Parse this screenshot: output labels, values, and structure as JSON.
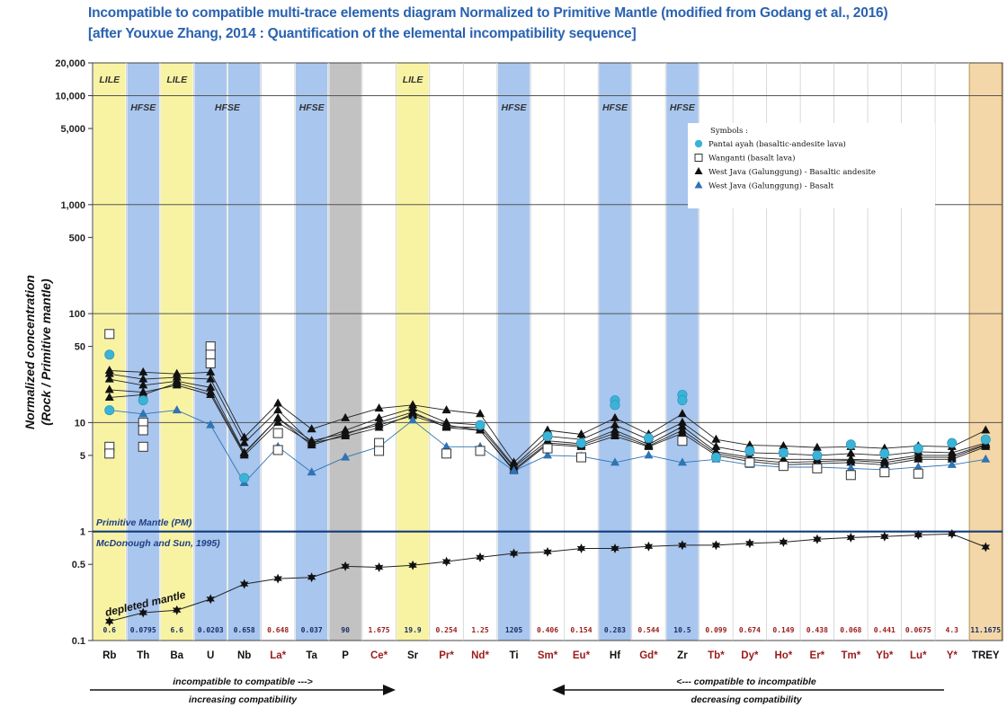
{
  "title_line1": "Incompatible to compatible multi-trace elements diagram Normalized to Primitive Mantle (modified from Godang et al., 2016)",
  "title_line2": "[after Youxue Zhang, 2014 : Quantification of the elemental incompatibility sequence]",
  "colors": {
    "title": "#2a62b0",
    "lile": "#f8f3a3",
    "hfse": "#a8c6ee",
    "p_band": "#c2c2c2",
    "trey": "#f4d7a8",
    "pm_line": "#123b7a",
    "ree_label": "#9b1b1b",
    "cyan": "#3bb3d6",
    "blue_tri": "#2f74b4"
  },
  "chart_data": {
    "type": "scatter",
    "y_scale": "log",
    "ylim": [
      0.1,
      20000
    ],
    "ylabel": "Normalized concentration\n(Rock / Primitive mantle)",
    "yticks": [
      0.1,
      0.5,
      1,
      5,
      10,
      50,
      100,
      500,
      1000,
      5000,
      10000,
      20000
    ],
    "ytick_labels": [
      "0.1",
      "0.5",
      "1",
      "5",
      "10",
      "50",
      "100",
      "500",
      "1,000",
      "5,000",
      "10,000",
      "20,000"
    ],
    "categories": [
      "Rb",
      "Th",
      "Ba",
      "U",
      "Nb",
      "La*",
      "Ta",
      "P",
      "Ce*",
      "Sr",
      "Pr*",
      "Nd*",
      "Ti",
      "Sm*",
      "Eu*",
      "Hf",
      "Gd*",
      "Zr",
      "Tb*",
      "Dy*",
      "Ho*",
      "Er*",
      "Tm*",
      "Yb*",
      "Lu*",
      "Y*",
      "TREY"
    ],
    "ree_flags": [
      false,
      false,
      false,
      false,
      false,
      true,
      false,
      false,
      true,
      false,
      true,
      true,
      false,
      true,
      true,
      false,
      true,
      false,
      true,
      true,
      true,
      true,
      true,
      true,
      true,
      true,
      false
    ],
    "band_types": [
      "lile",
      "hfse",
      "lile",
      "hfse",
      "hfse",
      "",
      "hfse",
      "p",
      "",
      "lile",
      "",
      "",
      "hfse",
      "",
      "",
      "hfse",
      "",
      "hfse",
      "",
      "",
      "",
      "",
      "",
      "",
      "",
      "",
      "trey"
    ],
    "band_labels": [
      {
        "index": 0,
        "text": "LILE",
        "row": "top"
      },
      {
        "index": 1,
        "text": "HFSE",
        "row": "second"
      },
      {
        "index": 2,
        "text": "LILE",
        "row": "top"
      },
      {
        "index": 3.5,
        "text": "HFSE",
        "row": "second"
      },
      {
        "index": 6,
        "text": "HFSE",
        "row": "second"
      },
      {
        "index": 9,
        "text": "LILE",
        "row": "top"
      },
      {
        "index": 12,
        "text": "HFSE",
        "row": "second"
      },
      {
        "index": 15,
        "text": "HFSE",
        "row": "second"
      },
      {
        "index": 17,
        "text": "HFSE",
        "row": "second"
      }
    ],
    "pm_values": [
      "0.6",
      "0.0795",
      "6.6",
      "0.0203",
      "0.658",
      "0.648",
      "0.037",
      "90",
      "1.675",
      "19.9",
      "0.254",
      "1.25",
      "1205",
      "0.406",
      "0.154",
      "0.283",
      "0.544",
      "10.5",
      "0.099",
      "0.674",
      "0.149",
      "0.438",
      "0.068",
      "0.441",
      "0.0675",
      "4.3",
      "11.1675"
    ],
    "primitive_mantle_value": 1,
    "annotations": {
      "pm_label": "Primitive Mantle (PM)",
      "pm_ref": "McDonough and Sun, 1995)",
      "depleted": "depleted mantle",
      "left_top": "incompatible to compatible --->",
      "left_bottom": "increasing compatibility",
      "right_top": "<--- compatible to incompatible",
      "right_bottom": "decreasing compatibility"
    },
    "legend": {
      "header": "Symbols :",
      "items": [
        {
          "marker": "circle",
          "color": "#3bb3d6",
          "label": "Pantai ayah (basaltic-andesite lava)"
        },
        {
          "marker": "square",
          "color": "#333333",
          "label": "Wanganti (basalt lava)"
        },
        {
          "marker": "triangle",
          "color": "#111111",
          "label": "West Java (Galunggung) - Basaltic andesite"
        },
        {
          "marker": "triangle",
          "color": "#2f74b4",
          "label": "West Java (Galunggung) - Basalt"
        }
      ]
    },
    "series": [
      {
        "name": "depleted mantle",
        "style": "star",
        "values": [
          0.15,
          0.18,
          0.19,
          0.24,
          0.33,
          0.37,
          0.38,
          0.48,
          0.47,
          0.49,
          0.53,
          0.58,
          0.63,
          0.65,
          0.7,
          0.7,
          0.73,
          0.75,
          0.75,
          0.78,
          0.8,
          0.85,
          0.88,
          0.9,
          0.93,
          0.95,
          0.72
        ]
      },
      {
        "name": "West Java (Galunggung) - Basaltic andesite",
        "style": "blacktri",
        "values": [
          30,
          29,
          28,
          29,
          7.3,
          15,
          8.7,
          11,
          13.5,
          14.5,
          13,
          12,
          4.3,
          8.5,
          7.8,
          11,
          7.8,
          12,
          7,
          6.2,
          6.1,
          5.9,
          6,
          5.8,
          6.1,
          6,
          8.5
        ]
      },
      {
        "name": "West Java (Galunggung) - Basaltic andesite",
        "style": "blacktri",
        "values": [
          28,
          25,
          26,
          25,
          6.5,
          13,
          6.5,
          8.5,
          11,
          13.5,
          10,
          9.5,
          4,
          7.5,
          7,
          9.5,
          7,
          10,
          6,
          5.3,
          5.2,
          5,
          5.2,
          5,
          5.4,
          5.3,
          6.5
        ]
      },
      {
        "name": "West Java (Galunggung) - Basaltic andesite",
        "style": "blacktri",
        "values": [
          25,
          22,
          24,
          21,
          5.3,
          11,
          6.2,
          7.8,
          10,
          12.5,
          9,
          8.5,
          3.7,
          6.5,
          6.2,
          8,
          6.1,
          8.5,
          5.2,
          4.6,
          4.3,
          4.4,
          4.5,
          4.3,
          4.8,
          4.8,
          6.2
        ]
      },
      {
        "name": "West Java (Galunggung) - Basaltic andesite",
        "style": "blacktri",
        "values": [
          20,
          19,
          22,
          18,
          5,
          10,
          6.5,
          7.5,
          9,
          12,
          9.5,
          8.5,
          3.6,
          6.3,
          6,
          7.5,
          6,
          8,
          5,
          4.4,
          4.1,
          4.2,
          4.3,
          4.1,
          4.6,
          4.6,
          6
        ]
      },
      {
        "name": "West Java (Galunggung) - Basaltic andesite",
        "style": "blacktri",
        "values": [
          17,
          18,
          23,
          19,
          5.2,
          11,
          6.8,
          8,
          9.5,
          11.5,
          9.2,
          9,
          3.9,
          6.8,
          6.4,
          8.5,
          6.3,
          9.2,
          5.4,
          4.8,
          4.6,
          4.6,
          4.6,
          4.5,
          5,
          5,
          6.3
        ]
      },
      {
        "name": "West Java (Galunggung) - Basalt",
        "style": "bluetri",
        "values": [
          13,
          12,
          13,
          9.5,
          2.8,
          6,
          3.5,
          4.8,
          6,
          10.5,
          6,
          6,
          3.6,
          5,
          4.9,
          4.3,
          5,
          4.3,
          4.6,
          4.1,
          3.9,
          3.9,
          3.8,
          3.7,
          3.9,
          4.1,
          4.6
        ]
      },
      {
        "name": "Pantai ayah (basaltic-andesite lava)",
        "style": "cyancircle",
        "values": [
          42,
          16,
          null,
          null,
          3.1,
          null,
          null,
          null,
          null,
          null,
          null,
          9.5,
          null,
          7.5,
          6.5,
          16,
          7.2,
          18,
          4.8,
          5.5,
          5.3,
          5,
          6.3,
          5.2,
          5.8,
          6.5,
          7
        ]
      },
      {
        "name": "Pantai ayah (basaltic-andesite lava)",
        "style": "cyancircle",
        "values": [
          13,
          null,
          null,
          null,
          null,
          null,
          null,
          null,
          null,
          null,
          null,
          null,
          null,
          null,
          null,
          14.5,
          null,
          16,
          null,
          null,
          null,
          null,
          null,
          null,
          null,
          null,
          null
        ]
      },
      {
        "name": "Wanganti (basalt lava)",
        "style": "opensquare",
        "values": [
          65,
          10,
          null,
          50,
          null,
          8,
          null,
          null,
          6.5,
          null,
          5.2,
          5.5,
          null,
          5.8,
          4.8,
          null,
          null,
          6.8,
          null,
          4.3,
          4,
          3.8,
          3.3,
          3.5,
          3.4,
          null,
          null
        ]
      },
      {
        "name": "Wanganti (basalt lava)",
        "style": "opensquare",
        "values": [
          6,
          6,
          null,
          42,
          null,
          5.6,
          null,
          null,
          5.5,
          null,
          null,
          null,
          null,
          null,
          null,
          null,
          null,
          null,
          null,
          null,
          null,
          null,
          null,
          null,
          null,
          null,
          null
        ]
      },
      {
        "name": "Wanganti (basalt lava)",
        "style": "opensquare",
        "values": [
          5.2,
          8.5,
          null,
          35,
          null,
          null,
          null,
          null,
          null,
          null,
          null,
          null,
          null,
          null,
          null,
          null,
          null,
          null,
          null,
          null,
          null,
          null,
          null,
          null,
          null,
          null,
          null
        ]
      }
    ]
  }
}
